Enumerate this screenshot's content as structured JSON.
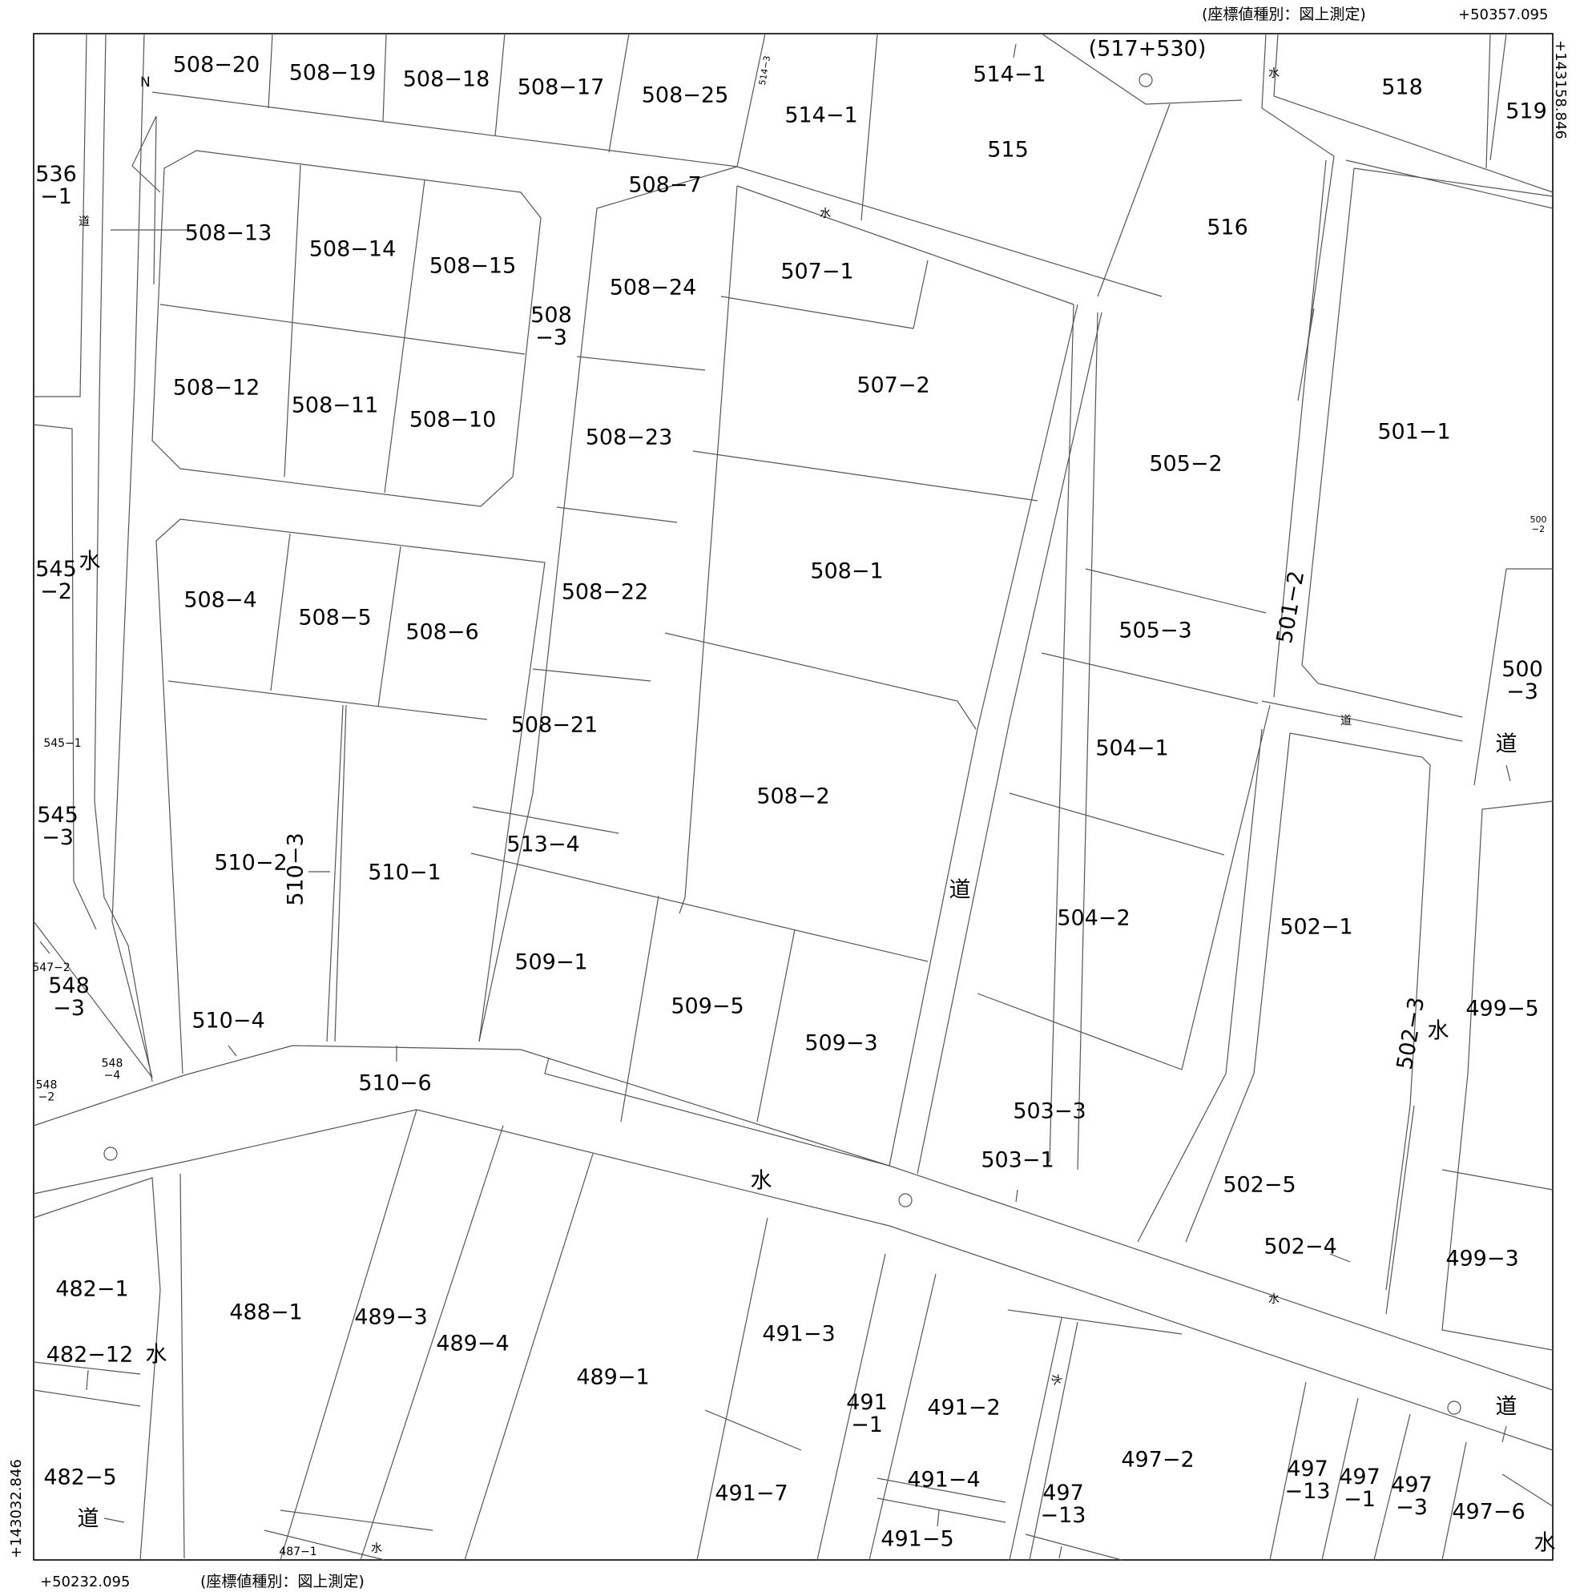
{
  "header": {
    "coord_type_top": "(座標値種別：図上測定)",
    "coord_type_bottom": "(座標値種別：図上測定)",
    "x_top_right": "+50357.095",
    "x_bottom_left": "+50232.095",
    "y_right_top": "+143158.846",
    "y_left_bottom": "+143032.846"
  },
  "north_arrow": {
    "label": "N"
  },
  "parcels": [
    {
      "id": "p-508-20",
      "text": "508−20"
    },
    {
      "id": "p-508-19",
      "text": "508−19"
    },
    {
      "id": "p-508-18",
      "text": "508−18"
    },
    {
      "id": "p-508-17",
      "text": "508−17"
    },
    {
      "id": "p-508-25",
      "text": "508−25"
    },
    {
      "id": "p-514-3",
      "text": "514−3"
    },
    {
      "id": "p-514-1a",
      "text": "514−1"
    },
    {
      "id": "p-514-1b",
      "text": "514−1"
    },
    {
      "id": "p-517-530",
      "text": "(517+530)"
    },
    {
      "id": "p-518",
      "text": "518"
    },
    {
      "id": "p-519",
      "text": "519"
    },
    {
      "id": "p-515",
      "text": "515"
    },
    {
      "id": "p-516",
      "text": "516"
    },
    {
      "id": "p-536-1",
      "text": "536\n−1"
    },
    {
      "id": "p-508-13",
      "text": "508−13"
    },
    {
      "id": "p-508-14",
      "text": "508−14"
    },
    {
      "id": "p-508-15",
      "text": "508−15"
    },
    {
      "id": "p-508-7",
      "text": "508−7"
    },
    {
      "id": "p-508-24",
      "text": "508−24"
    },
    {
      "id": "p-507-1",
      "text": "507−1"
    },
    {
      "id": "p-508-3",
      "text": "508\n−3"
    },
    {
      "id": "p-507-2",
      "text": "507−2"
    },
    {
      "id": "p-508-12",
      "text": "508−12"
    },
    {
      "id": "p-508-11",
      "text": "508−11"
    },
    {
      "id": "p-508-10",
      "text": "508−10"
    },
    {
      "id": "p-508-23",
      "text": "508−23"
    },
    {
      "id": "p-505-2",
      "text": "505−2"
    },
    {
      "id": "p-501-1",
      "text": "501−1"
    },
    {
      "id": "p-500-2",
      "text": "500\n−2"
    },
    {
      "id": "p-545-2",
      "text": "545\n−2"
    },
    {
      "id": "p-508-4",
      "text": "508−4"
    },
    {
      "id": "p-508-5",
      "text": "508−5"
    },
    {
      "id": "p-508-6",
      "text": "508−6"
    },
    {
      "id": "p-508-22",
      "text": "508−22"
    },
    {
      "id": "p-508-1",
      "text": "508−1"
    },
    {
      "id": "p-505-3",
      "text": "505−3"
    },
    {
      "id": "p-501-2",
      "text": "501−2"
    },
    {
      "id": "p-500-3",
      "text": "500\n−3"
    },
    {
      "id": "p-545-1",
      "text": "545−1"
    },
    {
      "id": "p-508-21",
      "text": "508−21"
    },
    {
      "id": "p-504-1",
      "text": "504−1"
    },
    {
      "id": "p-508-2",
      "text": "508−2"
    },
    {
      "id": "p-545-3",
      "text": "545\n−3"
    },
    {
      "id": "p-513-4",
      "text": "513−4"
    },
    {
      "id": "p-510-2",
      "text": "510−2"
    },
    {
      "id": "p-510-3",
      "text": "510−3"
    },
    {
      "id": "p-510-1",
      "text": "510−1"
    },
    {
      "id": "p-504-2",
      "text": "504−2"
    },
    {
      "id": "p-502-1",
      "text": "502−1"
    },
    {
      "id": "p-547-2",
      "text": "547−2"
    },
    {
      "id": "p-548-3",
      "text": "548\n−3"
    },
    {
      "id": "p-509-1",
      "text": "509−1"
    },
    {
      "id": "p-509-5",
      "text": "509−5"
    },
    {
      "id": "p-499-5",
      "text": "499−5"
    },
    {
      "id": "p-502-3",
      "text": "502−3"
    },
    {
      "id": "p-510-4",
      "text": "510−4"
    },
    {
      "id": "p-509-3",
      "text": "509−3"
    },
    {
      "id": "p-548-4",
      "text": "548\n−4"
    },
    {
      "id": "p-548-2",
      "text": "548\n−2"
    },
    {
      "id": "p-510-6",
      "text": "510−6"
    },
    {
      "id": "p-503-3",
      "text": "503−3"
    },
    {
      "id": "p-503-1",
      "text": "503−1"
    },
    {
      "id": "p-502-5",
      "text": "502−5"
    },
    {
      "id": "p-502-4",
      "text": "502−4"
    },
    {
      "id": "p-499-3",
      "text": "499−3"
    },
    {
      "id": "p-482-1",
      "text": "482−1"
    },
    {
      "id": "p-488-1",
      "text": "488−1"
    },
    {
      "id": "p-489-3",
      "text": "489−3"
    },
    {
      "id": "p-489-4",
      "text": "489−4"
    },
    {
      "id": "p-489-1",
      "text": "489−1"
    },
    {
      "id": "p-491-3",
      "text": "491−3"
    },
    {
      "id": "p-482-12",
      "text": "482−12"
    },
    {
      "id": "p-491-1",
      "text": "491\n−1"
    },
    {
      "id": "p-491-2",
      "text": "491−2"
    },
    {
      "id": "p-497-2",
      "text": "497−2"
    },
    {
      "id": "p-482-5",
      "text": "482−5"
    },
    {
      "id": "p-491-7",
      "text": "491−7"
    },
    {
      "id": "p-491-4",
      "text": "491−4"
    },
    {
      "id": "p-497-13a",
      "text": "497\n−13"
    },
    {
      "id": "p-497-13b",
      "text": "497\n−13"
    },
    {
      "id": "p-497-1",
      "text": "497\n−1"
    },
    {
      "id": "p-497-3",
      "text": "497\n−3"
    },
    {
      "id": "p-497-6",
      "text": "497−6"
    },
    {
      "id": "p-491-5",
      "text": "491−5"
    },
    {
      "id": "p-487-1",
      "text": "487−1"
    }
  ],
  "road_labels": [
    {
      "id": "r-michi-1",
      "text": "道"
    },
    {
      "id": "r-mizu-1",
      "text": "水"
    },
    {
      "id": "r-mizu-2",
      "text": "水"
    },
    {
      "id": "r-mizu-3",
      "text": "水"
    },
    {
      "id": "r-michi-2",
      "text": "道"
    },
    {
      "id": "r-michi-3",
      "text": "道"
    },
    {
      "id": "r-michi-4",
      "text": "道"
    },
    {
      "id": "r-mizu-4",
      "text": "水"
    },
    {
      "id": "r-mizu-5",
      "text": "水"
    },
    {
      "id": "r-mizu-6",
      "text": "水"
    },
    {
      "id": "r-mizu-7",
      "text": "水"
    },
    {
      "id": "r-michi-5",
      "text": "道"
    },
    {
      "id": "r-mizu-8",
      "text": "水"
    },
    {
      "id": "r-mizu-9",
      "text": "水"
    },
    {
      "id": "r-michi-6",
      "text": "道"
    },
    {
      "id": "r-mizu-10",
      "text": "水"
    }
  ]
}
